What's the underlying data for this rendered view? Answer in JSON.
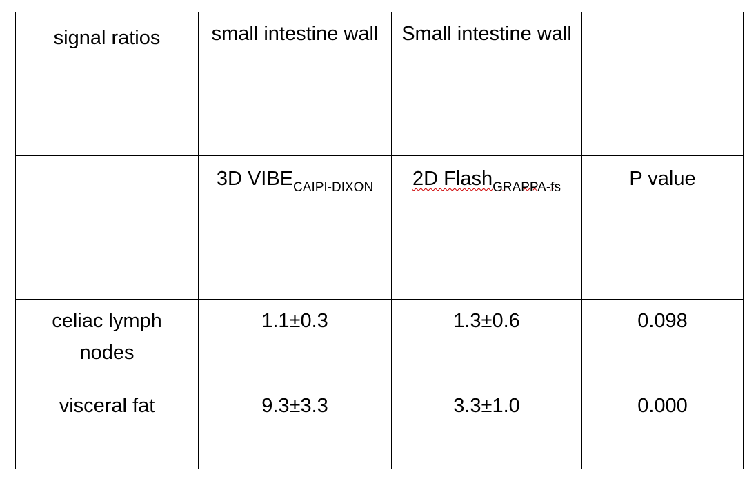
{
  "table": {
    "rows": [
      [
        "signal ratios",
        "small intestine wall",
        "Small intestine wall",
        null
      ],
      [
        null,
        {
          "text": "3D VIBE",
          "sub": "CAIPI-DIXON"
        },
        {
          "text": "2D Flash",
          "sub": "GRAPPA-fs"
        },
        "P value"
      ],
      [
        "celiac lymph nodes",
        "1.1±0.3",
        "1.3±0.6",
        "0.098"
      ],
      [
        "visceral fat",
        "9.3±3.3",
        "3.3±1.0",
        "0.000"
      ]
    ]
  }
}
